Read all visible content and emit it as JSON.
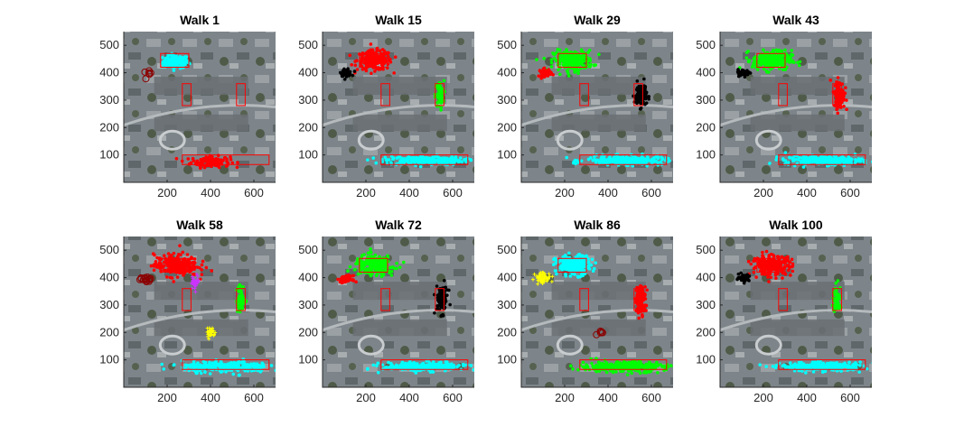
{
  "figure": {
    "background": "#ffffff"
  },
  "colors": {
    "red": "#ff0000",
    "cyan": "#00ffff",
    "green": "#00ff00",
    "black": "#000000",
    "magenta": "#cc33ff",
    "yellow": "#ffff00",
    "dark_red": "#8b0000",
    "region_outline": "#ff0000"
  },
  "chart_data": [
    {
      "type": "scatter",
      "title": "Walk 1",
      "xlim": [
        0,
        700
      ],
      "ylim": [
        0,
        550
      ],
      "xticks": [
        200,
        400,
        600
      ],
      "yticks": [
        100,
        200,
        300,
        400,
        500
      ],
      "background_image": "aerial-photo-housing-area",
      "regions": [
        {
          "x": [
            170,
            300
          ],
          "y": [
            420,
            470
          ]
        },
        {
          "x": [
            270,
            310
          ],
          "y": [
            280,
            360
          ]
        },
        {
          "x": [
            520,
            560
          ],
          "y": [
            280,
            360
          ]
        },
        {
          "x": [
            270,
            670
          ],
          "y": [
            65,
            100
          ]
        }
      ],
      "clusters": [
        {
          "color": "cyan",
          "cx": 240,
          "cy": 440,
          "sx": 30,
          "sy": 12,
          "n": 120,
          "marker": "dot"
        },
        {
          "color": "red",
          "cx": 400,
          "cy": 75,
          "sx": 45,
          "sy": 10,
          "n": 140,
          "marker": "dot"
        },
        {
          "color": "dark_red",
          "cx": 110,
          "cy": 395,
          "sx": 8,
          "sy": 5,
          "n": 6,
          "marker": "circle"
        }
      ]
    },
    {
      "type": "scatter",
      "title": "Walk 15",
      "xlim": [
        0,
        700
      ],
      "ylim": [
        0,
        550
      ],
      "xticks": [
        200,
        400,
        600
      ],
      "yticks": [
        100,
        200,
        300,
        400,
        500
      ],
      "background_image": "aerial-photo-housing-area",
      "regions": [
        {
          "x": [
            170,
            300
          ],
          "y": [
            420,
            470
          ]
        },
        {
          "x": [
            270,
            310
          ],
          "y": [
            280,
            360
          ]
        },
        {
          "x": [
            520,
            560
          ],
          "y": [
            280,
            360
          ]
        },
        {
          "x": [
            270,
            670
          ],
          "y": [
            65,
            100
          ]
        }
      ],
      "clusters": [
        {
          "color": "red",
          "cx": 240,
          "cy": 445,
          "sx": 40,
          "sy": 18,
          "n": 220,
          "marker": "dot"
        },
        {
          "color": "black",
          "cx": 110,
          "cy": 400,
          "sx": 12,
          "sy": 6,
          "n": 60,
          "marker": "dot"
        },
        {
          "color": "green",
          "cx": 540,
          "cy": 320,
          "sx": 10,
          "sy": 25,
          "n": 60,
          "marker": "dot"
        },
        {
          "color": "cyan",
          "cx": 470,
          "cy": 80,
          "sx": 90,
          "sy": 8,
          "n": 240,
          "marker": "dot"
        }
      ]
    },
    {
      "type": "scatter",
      "title": "Walk 29",
      "xlim": [
        0,
        700
      ],
      "ylim": [
        0,
        550
      ],
      "xticks": [
        200,
        400,
        600
      ],
      "yticks": [
        100,
        200,
        300,
        400,
        500
      ],
      "background_image": "aerial-photo-housing-area",
      "regions": [
        {
          "x": [
            170,
            300
          ],
          "y": [
            420,
            470
          ]
        },
        {
          "x": [
            270,
            310
          ],
          "y": [
            280,
            360
          ]
        },
        {
          "x": [
            520,
            560
          ],
          "y": [
            280,
            360
          ]
        },
        {
          "x": [
            270,
            670
          ],
          "y": [
            65,
            100
          ]
        }
      ],
      "clusters": [
        {
          "color": "green",
          "cx": 240,
          "cy": 445,
          "sx": 45,
          "sy": 18,
          "n": 240,
          "marker": "dot"
        },
        {
          "color": "red",
          "cx": 110,
          "cy": 400,
          "sx": 14,
          "sy": 7,
          "n": 60,
          "marker": "dot"
        },
        {
          "color": "black",
          "cx": 550,
          "cy": 320,
          "sx": 14,
          "sy": 22,
          "n": 100,
          "marker": "dot"
        },
        {
          "color": "cyan",
          "cx": 480,
          "cy": 80,
          "sx": 90,
          "sy": 8,
          "n": 240,
          "marker": "dot"
        }
      ]
    },
    {
      "type": "scatter",
      "title": "Walk 43",
      "xlim": [
        0,
        700
      ],
      "ylim": [
        0,
        550
      ],
      "xticks": [
        200,
        400,
        600
      ],
      "yticks": [
        100,
        200,
        300,
        400,
        500
      ],
      "background_image": "aerial-photo-housing-area",
      "regions": [
        {
          "x": [
            170,
            300
          ],
          "y": [
            420,
            470
          ]
        },
        {
          "x": [
            270,
            310
          ],
          "y": [
            280,
            360
          ]
        },
        {
          "x": [
            520,
            560
          ],
          "y": [
            280,
            360
          ]
        },
        {
          "x": [
            270,
            670
          ],
          "y": [
            65,
            100
          ]
        }
      ],
      "clusters": [
        {
          "color": "green",
          "cx": 240,
          "cy": 445,
          "sx": 45,
          "sy": 18,
          "n": 240,
          "marker": "dot"
        },
        {
          "color": "black",
          "cx": 110,
          "cy": 400,
          "sx": 14,
          "sy": 6,
          "n": 60,
          "marker": "dot"
        },
        {
          "color": "red",
          "cx": 550,
          "cy": 320,
          "sx": 12,
          "sy": 25,
          "n": 120,
          "marker": "dot"
        },
        {
          "color": "cyan",
          "cx": 480,
          "cy": 80,
          "sx": 90,
          "sy": 8,
          "n": 240,
          "marker": "dot"
        }
      ]
    },
    {
      "type": "scatter",
      "title": "Walk 58",
      "xlim": [
        0,
        700
      ],
      "ylim": [
        0,
        550
      ],
      "xticks": [
        200,
        400,
        600
      ],
      "yticks": [
        100,
        200,
        300,
        400,
        500
      ],
      "background_image": "aerial-photo-housing-area",
      "regions": [
        {
          "x": [
            170,
            300
          ],
          "y": [
            420,
            470
          ]
        },
        {
          "x": [
            270,
            310
          ],
          "y": [
            280,
            360
          ]
        },
        {
          "x": [
            520,
            560
          ],
          "y": [
            280,
            360
          ]
        },
        {
          "x": [
            270,
            670
          ],
          "y": [
            65,
            100
          ]
        }
      ],
      "clusters": [
        {
          "color": "red",
          "cx": 240,
          "cy": 445,
          "sx": 50,
          "sy": 20,
          "n": 260,
          "marker": "dot"
        },
        {
          "color": "dark_red",
          "cx": 110,
          "cy": 395,
          "sx": 16,
          "sy": 5,
          "n": 14,
          "marker": "circle"
        },
        {
          "color": "magenta",
          "cx": 330,
          "cy": 385,
          "sx": 10,
          "sy": 12,
          "n": 30,
          "marker": "plus"
        },
        {
          "color": "green",
          "cx": 540,
          "cy": 320,
          "sx": 10,
          "sy": 25,
          "n": 60,
          "marker": "dot"
        },
        {
          "color": "yellow",
          "cx": 400,
          "cy": 200,
          "sx": 10,
          "sy": 12,
          "n": 30,
          "marker": "plus"
        },
        {
          "color": "cyan",
          "cx": 470,
          "cy": 75,
          "sx": 100,
          "sy": 10,
          "n": 260,
          "marker": "dot"
        }
      ]
    },
    {
      "type": "scatter",
      "title": "Walk 72",
      "xlim": [
        0,
        700
      ],
      "ylim": [
        0,
        550
      ],
      "xticks": [
        200,
        400,
        600
      ],
      "yticks": [
        100,
        200,
        300,
        400,
        500
      ],
      "background_image": "aerial-photo-housing-area",
      "regions": [
        {
          "x": [
            170,
            300
          ],
          "y": [
            420,
            470
          ]
        },
        {
          "x": [
            270,
            310
          ],
          "y": [
            280,
            360
          ]
        },
        {
          "x": [
            520,
            560
          ],
          "y": [
            280,
            360
          ]
        },
        {
          "x": [
            270,
            670
          ],
          "y": [
            65,
            100
          ]
        }
      ],
      "clusters": [
        {
          "color": "green",
          "cx": 240,
          "cy": 445,
          "sx": 45,
          "sy": 18,
          "n": 240,
          "marker": "dot"
        },
        {
          "color": "red",
          "cx": 110,
          "cy": 395,
          "sx": 14,
          "sy": 6,
          "n": 60,
          "marker": "dot"
        },
        {
          "color": "black",
          "cx": 550,
          "cy": 320,
          "sx": 14,
          "sy": 25,
          "n": 100,
          "marker": "dot"
        },
        {
          "color": "cyan",
          "cx": 470,
          "cy": 75,
          "sx": 95,
          "sy": 8,
          "n": 240,
          "marker": "dot"
        }
      ]
    },
    {
      "type": "scatter",
      "title": "Walk 86",
      "xlim": [
        0,
        700
      ],
      "ylim": [
        0,
        550
      ],
      "xticks": [
        200,
        400,
        600
      ],
      "yticks": [
        100,
        200,
        300,
        400,
        500
      ],
      "background_image": "aerial-photo-housing-area",
      "regions": [
        {
          "x": [
            170,
            300
          ],
          "y": [
            420,
            470
          ]
        },
        {
          "x": [
            270,
            310
          ],
          "y": [
            280,
            360
          ]
        },
        {
          "x": [
            520,
            560
          ],
          "y": [
            280,
            360
          ]
        },
        {
          "x": [
            270,
            670
          ],
          "y": [
            65,
            100
          ]
        }
      ],
      "clusters": [
        {
          "color": "cyan",
          "cx": 240,
          "cy": 445,
          "sx": 40,
          "sy": 18,
          "n": 220,
          "marker": "dot"
        },
        {
          "color": "yellow",
          "cx": 100,
          "cy": 400,
          "sx": 18,
          "sy": 10,
          "n": 60,
          "marker": "plus"
        },
        {
          "color": "red",
          "cx": 550,
          "cy": 320,
          "sx": 12,
          "sy": 25,
          "n": 120,
          "marker": "dot"
        },
        {
          "color": "dark_red",
          "cx": 360,
          "cy": 205,
          "sx": 12,
          "sy": 8,
          "n": 5,
          "marker": "circle"
        },
        {
          "color": "green",
          "cx": 470,
          "cy": 75,
          "sx": 100,
          "sy": 10,
          "n": 280,
          "marker": "dot"
        }
      ]
    },
    {
      "type": "scatter",
      "title": "Walk 100",
      "xlim": [
        0,
        700
      ],
      "ylim": [
        0,
        550
      ],
      "xticks": [
        200,
        400,
        600
      ],
      "yticks": [
        100,
        200,
        300,
        400,
        500
      ],
      "background_image": "aerial-photo-housing-area",
      "regions": [
        {
          "x": [
            170,
            300
          ],
          "y": [
            420,
            470
          ]
        },
        {
          "x": [
            270,
            310
          ],
          "y": [
            280,
            360
          ]
        },
        {
          "x": [
            520,
            560
          ],
          "y": [
            280,
            360
          ]
        },
        {
          "x": [
            270,
            670
          ],
          "y": [
            65,
            100
          ]
        }
      ],
      "clusters": [
        {
          "color": "red",
          "cx": 240,
          "cy": 445,
          "sx": 45,
          "sy": 18,
          "n": 240,
          "marker": "dot"
        },
        {
          "color": "black",
          "cx": 110,
          "cy": 400,
          "sx": 12,
          "sy": 6,
          "n": 60,
          "marker": "dot"
        },
        {
          "color": "green",
          "cx": 540,
          "cy": 320,
          "sx": 10,
          "sy": 25,
          "n": 60,
          "marker": "dot"
        },
        {
          "color": "cyan",
          "cx": 470,
          "cy": 75,
          "sx": 95,
          "sy": 8,
          "n": 240,
          "marker": "dot"
        }
      ]
    }
  ]
}
